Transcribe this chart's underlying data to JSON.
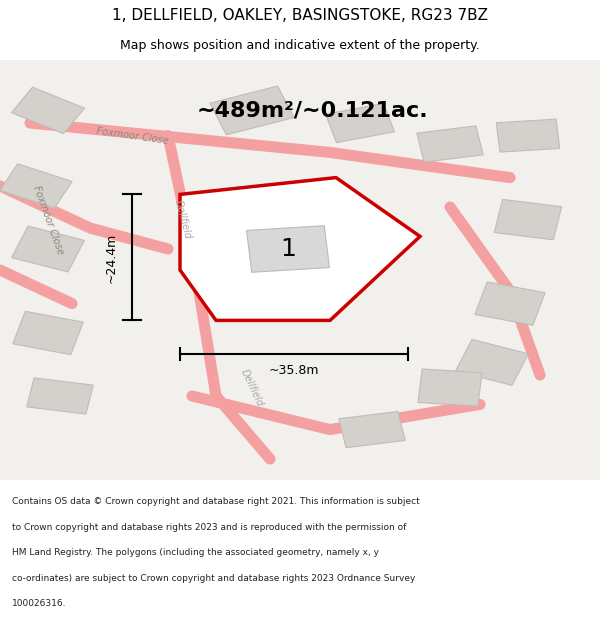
{
  "title": "1, DELLFIELD, OAKLEY, BASINGSTOKE, RG23 7BZ",
  "subtitle": "Map shows position and indicative extent of the property.",
  "area_text": "~489m²/~0.121ac.",
  "width_label": "~35.8m",
  "height_label": "~24.4m",
  "plot_number": "1",
  "footer": "Contains OS data © Crown copyright and database right 2021. This information is subject to Crown copyright and database rights 2023 and is reproduced with the permission of HM Land Registry. The polygons (including the associated geometry, namely x, y co-ordinates) are subject to Crown copyright and database rights 2023 Ordnance Survey 100026316.",
  "background_color": "#f0eeea",
  "map_bg": "#f0eeea",
  "plot_outline_color": "#cc0000",
  "plot_fill_color": "#ffffff",
  "building_color": "#d8d8d8",
  "road_line_color": "#f5a0a0",
  "road_line_color2": "#d0c8c0",
  "text_color": "#000000",
  "gray_building_color": "#cccccc",
  "road_outline_color": "#e8b4b4"
}
